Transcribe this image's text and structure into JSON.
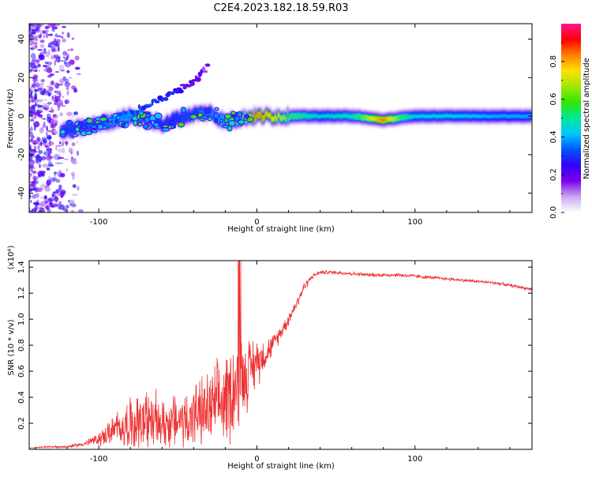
{
  "page": {
    "title": "C2E4.2023.182.18.59.R03"
  },
  "colors": {
    "snr_line": "#ee3030",
    "axis": "#000000",
    "background": "#ffffff"
  },
  "chart_data": [
    {
      "type": "heatmap",
      "title": "C2E4.2023.182.18.59.R03",
      "xlabel": "Height of straight line (km)",
      "ylabel": "Frequency (Hz)",
      "xlim": [
        -144,
        174
      ],
      "ylim": [
        -50,
        48
      ],
      "xticks": [
        -100,
        0,
        100
      ],
      "xtick_labels": [
        "-100",
        "0",
        "100"
      ],
      "yticks": [
        -40,
        -20,
        0,
        20,
        40
      ],
      "ytick_labels": [
        "-40",
        "-20",
        "0",
        "20",
        "40"
      ],
      "grid": false,
      "colorbar": {
        "label": "Normalized spectral amplitude",
        "range": [
          0,
          1
        ],
        "ticks": [
          0.0,
          0.2,
          0.4,
          0.6,
          0.8
        ],
        "tick_labels": [
          "0.0",
          "0.2",
          "0.4",
          "0.6",
          "0.8"
        ],
        "colormap": "rainbow (violet to red)",
        "stops": [
          "#ffffff",
          "#c9a8f0",
          "#7a00e8",
          "#3300ff",
          "#0055ff",
          "#00c8ff",
          "#00e89a",
          "#2ee800",
          "#9ee800",
          "#ffe000",
          "#ff8000",
          "#ff0000",
          "#ff1493"
        ]
      },
      "ridge": {
        "x": [
          -124,
          -110,
          -100,
          -90,
          -80,
          -70,
          -60,
          -50,
          -40,
          -30,
          -20,
          -10,
          0,
          10,
          20,
          40,
          60,
          80,
          90,
          100,
          120,
          150,
          174
        ],
        "frequency": [
          -8,
          -6,
          -4,
          -2,
          0,
          -2,
          -4,
          -1,
          1,
          2,
          -3,
          -1,
          0,
          0,
          0,
          0,
          0,
          -2,
          -1,
          0,
          0,
          0,
          0
        ],
        "amplitude": [
          0.3,
          0.35,
          0.35,
          0.4,
          0.4,
          0.35,
          0.3,
          0.3,
          0.35,
          0.4,
          0.45,
          0.6,
          0.85,
          0.75,
          0.6,
          0.45,
          0.5,
          0.85,
          0.6,
          0.45,
          0.45,
          0.4,
          0.4
        ]
      },
      "upper_branch": {
        "x": [
          -90,
          -80,
          -70,
          -60,
          -50,
          -40,
          -30
        ],
        "frequency": [
          -2,
          2,
          5,
          9,
          13,
          18,
          26
        ],
        "amplitude": [
          0.3,
          0.3,
          0.25,
          0.25,
          0.2,
          0.15,
          0.1
        ]
      }
    },
    {
      "type": "line",
      "xlabel": "Height of straight line (km)",
      "ylabel": "SNR (10 * v/v)",
      "y_scale_label": "(x10⁴)",
      "xlim": [
        -144,
        174
      ],
      "ylim": [
        0,
        1.45
      ],
      "xticks": [
        -100,
        0,
        100
      ],
      "xtick_labels": [
        "-100",
        "0",
        "100"
      ],
      "yticks": [
        0.2,
        0.4,
        0.6,
        0.8,
        1.0,
        1.2,
        1.4
      ],
      "ytick_labels": [
        "0.2",
        "0.4",
        "0.6",
        "0.8",
        "1.0",
        "1.2",
        "1.4"
      ],
      "grid": false,
      "series": [
        {
          "x": [
            -144,
            -130,
            -120,
            -110,
            -100,
            -90,
            -80,
            -70,
            -60,
            -50,
            -40,
            -30,
            -20,
            -15,
            -10,
            -5,
            0,
            5,
            10,
            15,
            20,
            25,
            30,
            35,
            40,
            50,
            60,
            70,
            80,
            90,
            100,
            110,
            120,
            130,
            140,
            150,
            160,
            174
          ],
          "values": [
            0.01,
            0.02,
            0.02,
            0.04,
            0.08,
            0.15,
            0.2,
            0.22,
            0.2,
            0.22,
            0.26,
            0.3,
            0.38,
            0.48,
            0.55,
            0.6,
            0.68,
            0.73,
            0.8,
            0.9,
            1.0,
            1.12,
            1.25,
            1.33,
            1.36,
            1.36,
            1.35,
            1.34,
            1.34,
            1.34,
            1.33,
            1.32,
            1.31,
            1.3,
            1.29,
            1.28,
            1.26,
            1.23
          ],
          "noise": [
            0,
            0.01,
            0.01,
            0.02,
            0.05,
            0.12,
            0.2,
            0.25,
            0.2,
            0.22,
            0.25,
            0.3,
            0.35,
            0.4,
            0.35,
            0.25,
            0.2,
            0.12,
            0.08,
            0.06,
            0.05,
            0.05,
            0.04,
            0.02,
            0.015,
            0.015,
            0.015,
            0.015,
            0.015,
            0.015,
            0.015,
            0.012,
            0.012,
            0.012,
            0.012,
            0.012,
            0.012,
            0.012
          ]
        }
      ]
    }
  ]
}
